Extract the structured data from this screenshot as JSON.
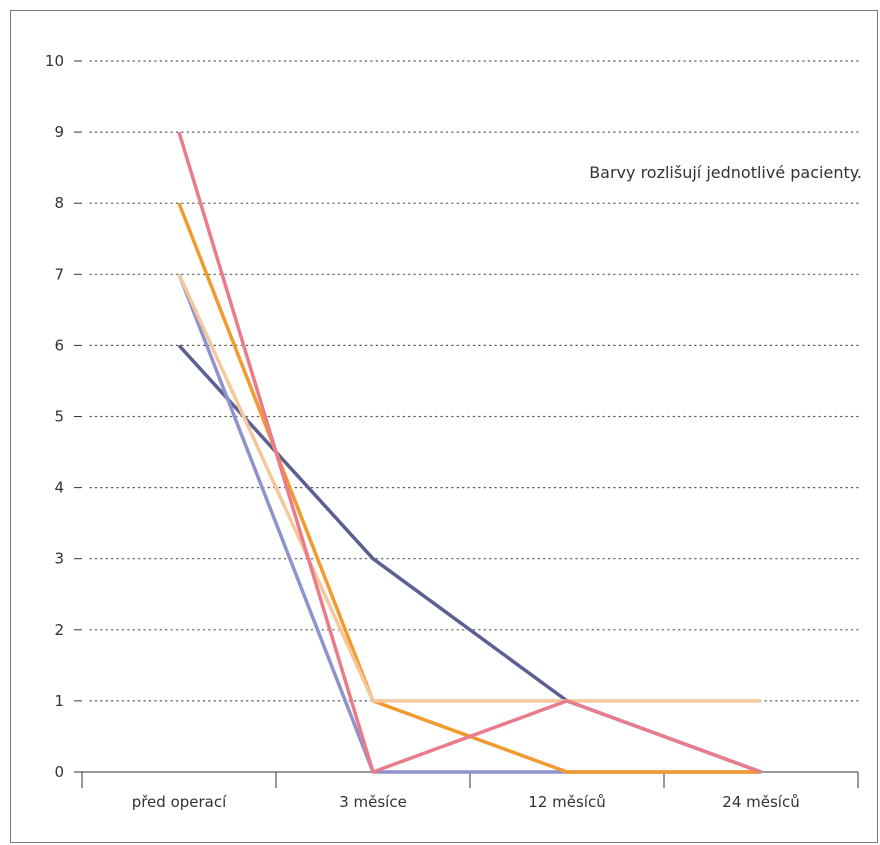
{
  "chart_data": {
    "type": "line",
    "categories": [
      "před operací",
      "3 měsíce",
      "12 měsíců",
      "24 měsíců"
    ],
    "ylim": [
      0,
      10
    ],
    "yticks": [
      0,
      1,
      2,
      3,
      4,
      5,
      6,
      7,
      8,
      9,
      10
    ],
    "grid": true,
    "annotation": "Barvy rozlišují jednotlivé pacienty.",
    "series": [
      {
        "color": "#5b5f94",
        "values": [
          6,
          3,
          1,
          0
        ]
      },
      {
        "color": "#8f93cb",
        "values": [
          7,
          0,
          0,
          0
        ]
      },
      {
        "color": "#f39a2e",
        "values": [
          8,
          1,
          0,
          0
        ]
      },
      {
        "color": "#f4c89c",
        "values": [
          7,
          1,
          1,
          1
        ]
      },
      {
        "color": "#ea7b8a",
        "values": [
          9,
          0,
          1,
          0
        ]
      }
    ]
  }
}
